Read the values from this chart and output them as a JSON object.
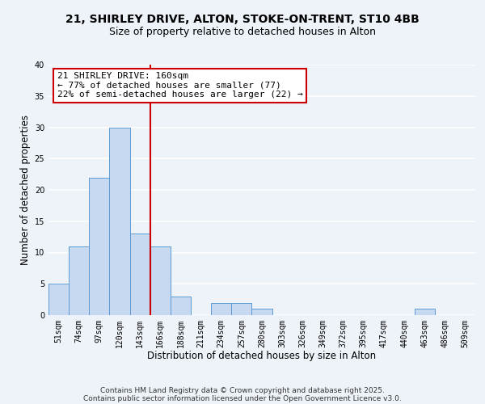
{
  "title_line1": "21, SHIRLEY DRIVE, ALTON, STOKE-ON-TRENT, ST10 4BB",
  "title_line2": "Size of property relative to detached houses in Alton",
  "xlabel": "Distribution of detached houses by size in Alton",
  "ylabel": "Number of detached properties",
  "bin_labels": [
    "51sqm",
    "74sqm",
    "97sqm",
    "120sqm",
    "143sqm",
    "166sqm",
    "188sqm",
    "211sqm",
    "234sqm",
    "257sqm",
    "280sqm",
    "303sqm",
    "326sqm",
    "349sqm",
    "372sqm",
    "395sqm",
    "417sqm",
    "440sqm",
    "463sqm",
    "486sqm",
    "509sqm"
  ],
  "bin_counts": [
    5,
    11,
    22,
    30,
    13,
    11,
    3,
    0,
    2,
    2,
    1,
    0,
    0,
    0,
    0,
    0,
    0,
    0,
    1,
    0,
    0
  ],
  "bar_color": "#c6d9f0",
  "bar_edge_color": "#5b9bd5",
  "vline_index": 5,
  "vline_color": "#cc0000",
  "annotation_title": "21 SHIRLEY DRIVE: 160sqm",
  "annotation_line2": "← 77% of detached houses are smaller (77)",
  "annotation_line3": "22% of semi-detached houses are larger (22) →",
  "annotation_box_color": "#ffffff",
  "annotation_box_edge": "#cc0000",
  "ylim": [
    0,
    40
  ],
  "yticks": [
    0,
    5,
    10,
    15,
    20,
    25,
    30,
    35,
    40
  ],
  "footer_line1": "Contains HM Land Registry data © Crown copyright and database right 2025.",
  "footer_line2": "Contains public sector information licensed under the Open Government Licence v3.0.",
  "background_color": "#eef2f9",
  "grid_color": "#ffffff",
  "title_fontsize": 10,
  "subtitle_fontsize": 9,
  "axis_label_fontsize": 8.5,
  "tick_fontsize": 7,
  "annotation_fontsize": 8,
  "footer_fontsize": 6.5
}
